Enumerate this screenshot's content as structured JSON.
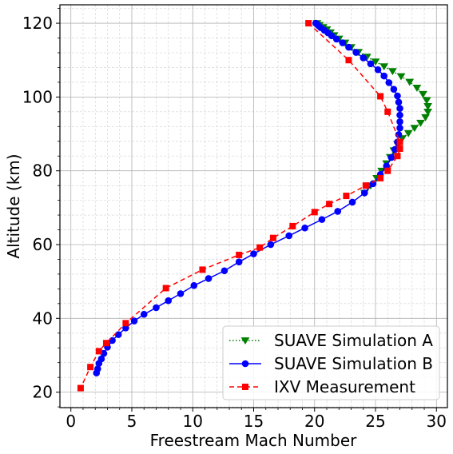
{
  "chart_data": {
    "type": "line",
    "title": "",
    "xlabel": "Freestream Mach Number",
    "ylabel": "Altitude (km)",
    "xlim": [
      -0.9,
      30.9
    ],
    "ylim": [
      15.8,
      125.0
    ],
    "xticks": [
      0,
      5,
      10,
      15,
      20,
      25,
      30
    ],
    "xtick_labels": [
      "0",
      "5",
      "10",
      "15",
      "20",
      "25",
      "30"
    ],
    "yticks": [
      20,
      40,
      60,
      80,
      100,
      120
    ],
    "ytick_labels": [
      "20",
      "40",
      "60",
      "80",
      "100",
      "120"
    ],
    "x_minor_step": 1,
    "y_minor_step": 4,
    "grid": "major and minor",
    "legend_position": "lower-right",
    "series": [
      {
        "name": "SUAVE Simulation A",
        "color": "#008000",
        "line_style": "dotted",
        "marker": "triangle-down",
        "x": [
          20.2,
          20.4,
          20.7,
          21.0,
          21.3,
          21.6,
          22.0,
          22.5,
          23.0,
          23.6,
          24.3,
          25.0,
          25.7,
          26.4,
          27.1,
          27.8,
          28.4,
          28.9,
          29.2,
          29.3,
          29.3,
          29.1,
          28.7,
          28.2,
          27.7,
          27.2,
          26.8,
          26.5,
          26.2,
          25.9,
          25.5,
          25.1,
          24.6,
          24.1
        ],
        "y": [
          120.0,
          119.5,
          118.9,
          118.3,
          117.5,
          116.7,
          115.8,
          114.7,
          113.5,
          112.2,
          110.9,
          109.6,
          108.3,
          107.0,
          105.6,
          104.1,
          102.5,
          100.8,
          99.1,
          97.5,
          96.0,
          94.5,
          93.0,
          91.6,
          90.2,
          88.8,
          87.2,
          85.5,
          83.7,
          82.0,
          80.0,
          78.0,
          76.0,
          74.0
        ]
      },
      {
        "name": "SUAVE Simulation B",
        "color": "#0000ff",
        "line_style": "solid",
        "marker": "circle",
        "x": [
          20.1,
          20.3,
          20.5,
          20.8,
          21.1,
          21.4,
          21.8,
          22.3,
          22.8,
          23.4,
          24.0,
          24.6,
          25.2,
          25.7,
          26.1,
          26.5,
          26.8,
          26.9,
          27.0,
          27.0,
          27.0,
          27.0,
          26.9,
          26.8,
          26.6,
          26.3,
          25.9,
          25.4,
          24.8,
          24.1,
          23.1,
          21.9,
          20.6,
          19.2,
          17.9,
          16.4,
          15.0,
          13.8,
          12.6,
          11.3,
          10.1,
          9.0,
          8.0,
          7.0,
          6.0,
          5.2,
          4.5,
          3.9,
          3.4,
          3.0,
          2.7,
          2.5,
          2.3,
          2.2,
          2.1
        ],
        "y": [
          120.0,
          119.4,
          118.8,
          118.1,
          117.4,
          116.6,
          115.7,
          114.7,
          113.5,
          112.1,
          110.6,
          109.0,
          107.4,
          105.7,
          103.9,
          102.1,
          100.3,
          98.6,
          96.9,
          95.1,
          93.3,
          91.6,
          89.8,
          87.8,
          85.8,
          83.6,
          81.3,
          79.0,
          76.5,
          74.0,
          71.5,
          69.0,
          66.8,
          64.5,
          62.4,
          60.0,
          57.5,
          55.3,
          52.9,
          50.8,
          48.9,
          46.7,
          44.8,
          42.9,
          41.1,
          39.3,
          37.4,
          35.6,
          34.0,
          32.2,
          30.5,
          29.0,
          27.8,
          26.3,
          25.2
        ]
      },
      {
        "name": "IXV Measurement",
        "color": "#ff0000",
        "line_style": "dashed",
        "marker": "square",
        "x": [
          19.5,
          22.8,
          25.4,
          26.0,
          27.0,
          27.0,
          26.8,
          26.0,
          25.4,
          24.2,
          22.6,
          21.2,
          20.0,
          18.2,
          16.6,
          15.5,
          13.8,
          10.8,
          7.8,
          4.5,
          2.9,
          2.3,
          1.6,
          0.8
        ],
        "y": [
          120.0,
          110.0,
          100.2,
          96.0,
          87.8,
          86.0,
          84.0,
          80.0,
          78.0,
          76.0,
          73.2,
          71.0,
          68.8,
          65.0,
          61.8,
          59.2,
          57.2,
          53.2,
          48.2,
          38.7,
          33.3,
          31.1,
          26.8,
          21.1
        ]
      }
    ]
  }
}
